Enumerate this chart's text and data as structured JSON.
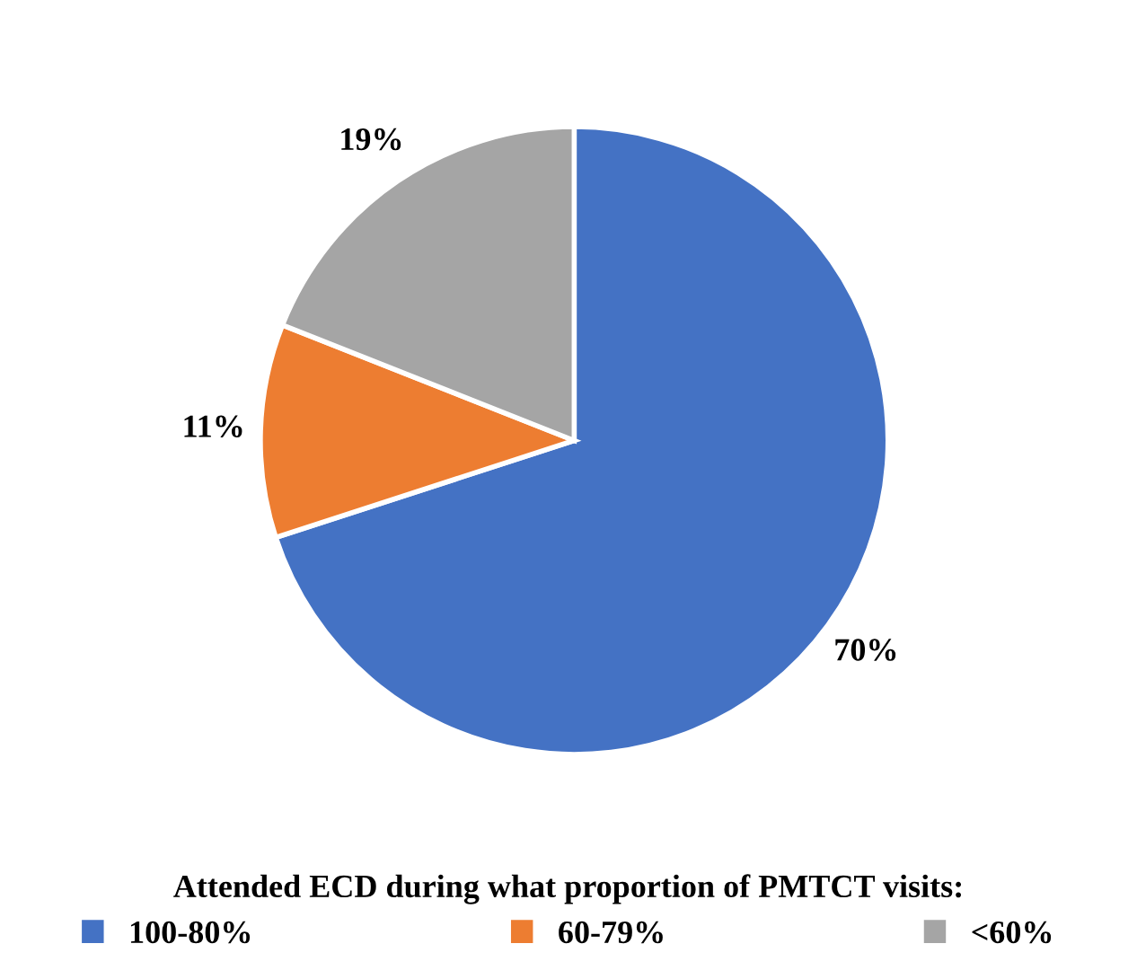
{
  "chart_data": {
    "type": "pie",
    "legend_title": "Attended ECD during what proportion of PMTCT visits:",
    "categories": [
      "100-80%",
      "60-79%",
      "<60%"
    ],
    "values": [
      70,
      11,
      19
    ],
    "colors": [
      "#4472c4",
      "#ed7d31",
      "#a5a5a5"
    ],
    "value_labels": [
      "70%",
      "11%",
      "19%"
    ],
    "legend": "bottom"
  }
}
